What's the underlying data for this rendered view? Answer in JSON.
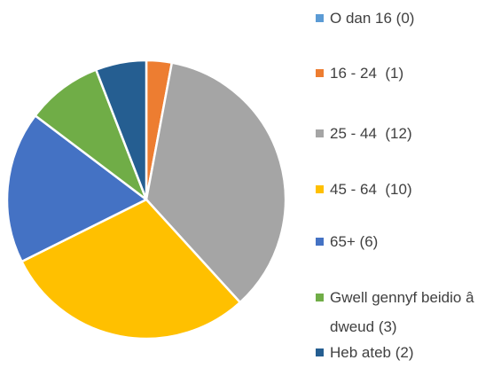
{
  "chart_data": {
    "type": "pie",
    "categories": [
      "O dan 16 (0)",
      "16 - 24  (1)",
      "25 - 44  (12)",
      "45 - 64  (10)",
      "65+ (6)",
      "Gwell gennyf beidio â dweud (3)",
      "Heb ateb (2)"
    ],
    "values": [
      0,
      1,
      12,
      10,
      6,
      3,
      2
    ],
    "colors": [
      "#5B9BD5",
      "#ED7D31",
      "#A5A5A5",
      "#FFC000",
      "#4472C4",
      "#70AD47",
      "#255E91"
    ],
    "legend": "right"
  }
}
